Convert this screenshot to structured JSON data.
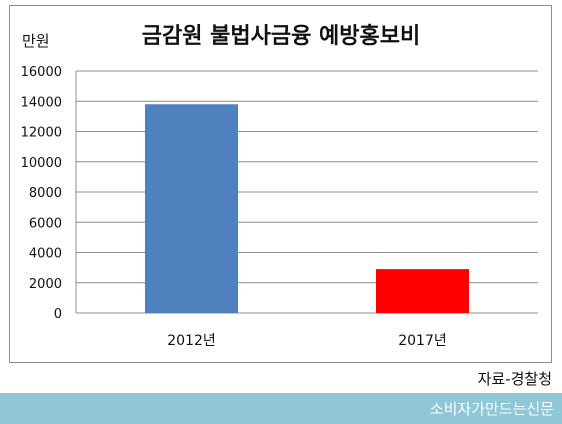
{
  "chart_data": {
    "type": "bar",
    "title": "금감원 불법사금융 예방홍보비",
    "ylabel": "만원",
    "categories": [
      "2012년",
      "2017년"
    ],
    "values": [
      13800,
      2900
    ],
    "colors": [
      "#4f81bd",
      "#ff0000"
    ],
    "ylim": [
      0,
      16000
    ],
    "yticks": [
      0,
      2000,
      4000,
      6000,
      8000,
      10000,
      12000,
      14000,
      16000
    ],
    "grid": true
  },
  "source": "자료-경찰청",
  "footer": "소비자가만드는신문"
}
